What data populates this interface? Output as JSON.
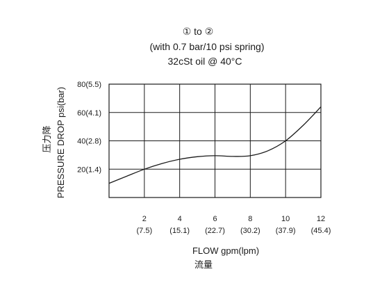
{
  "chart_data": {
    "type": "line",
    "title_lines": [
      "① to ②",
      "(with 0.7 bar/10 psi spring)",
      "32cSt oil @ 40°C"
    ],
    "ylabel_cn": "压力降",
    "ylabel": "PRESSURE DROP psi(bar)",
    "xlabel": "FLOW gpm(lpm)",
    "xlabel_cn": "流量",
    "xlim": [
      0,
      12
    ],
    "ylim": [
      0,
      80
    ],
    "x_ticks": [
      {
        "value": 2,
        "label": "2",
        "sublabel": "(7.5)"
      },
      {
        "value": 4,
        "label": "4",
        "sublabel": "(15.1)"
      },
      {
        "value": 6,
        "label": "6",
        "sublabel": "(22.7)"
      },
      {
        "value": 8,
        "label": "8",
        "sublabel": "(30.2)"
      },
      {
        "value": 10,
        "label": "10",
        "sublabel": "(37.9)"
      },
      {
        "value": 12,
        "label": "12",
        "sublabel": "(45.4)"
      }
    ],
    "y_ticks": [
      {
        "value": 20,
        "label": "20(1.4)"
      },
      {
        "value": 40,
        "label": "40(2.8)"
      },
      {
        "value": 60,
        "label": "60(4.1)"
      },
      {
        "value": 80,
        "label": "80(5.5)"
      }
    ],
    "grid": true,
    "series": [
      {
        "x": [
          0,
          1,
          2,
          3,
          4,
          5,
          6,
          7,
          8,
          9,
          10,
          11,
          12
        ],
        "y": [
          10,
          15,
          20,
          24,
          27,
          28.8,
          29.5,
          29,
          29.5,
          33,
          40,
          51,
          64
        ]
      }
    ]
  }
}
